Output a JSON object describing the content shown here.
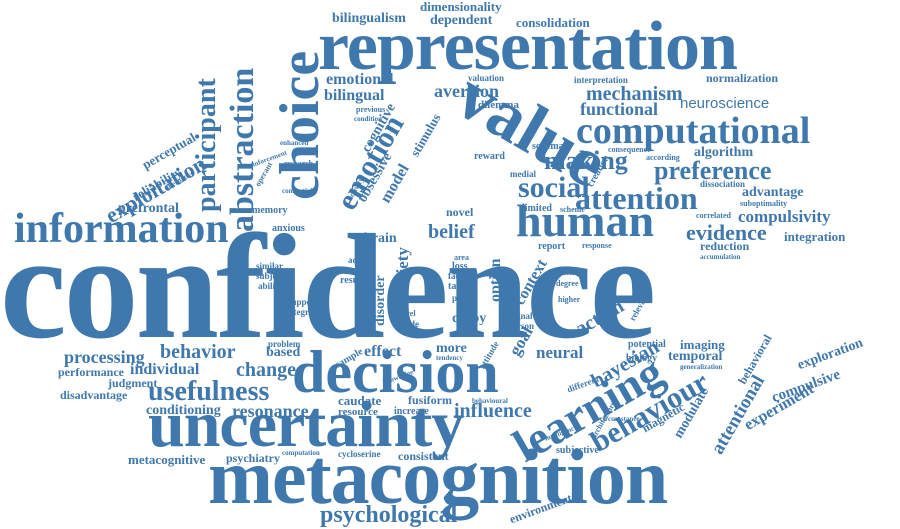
{
  "accent_color": "#3f78ad",
  "words": {
    "confidence": "confidence",
    "metacognition": "metacognition",
    "representation": "representation",
    "uncertainty": "uncertainty",
    "decision": "decision",
    "computational": "computational",
    "value": "value",
    "choice": "choice",
    "information": "information",
    "human": "human",
    "learning": "learning",
    "attention": "attention",
    "social": "social",
    "preference": "preference",
    "making": "making",
    "abstraction": "abstraction",
    "participant": "participant",
    "exploitation": "exploitation",
    "emotion": "emotion",
    "usefulness": "usefulness",
    "behaviour": "behaviour",
    "psychological": "psychological",
    "behavior": "behavior",
    "change": "change",
    "processing": "processing",
    "individual": "individual",
    "resonance": "resonance",
    "influence": "influence",
    "evidence": "evidence",
    "compulsivity": "compulsivity",
    "mechanism": "mechanism",
    "functional": "functional",
    "neuroscience": "neuroscience",
    "aversion": "aversion",
    "bilingual": "bilingual",
    "emotional": "emotional",
    "bilingualism": "bilingualism",
    "dependent": "dependent",
    "consolidation": "consolidation",
    "dimensionality": "dimensionality",
    "normalization": "normalization",
    "algorithm": "algorithm",
    "advantage": "advantage",
    "integration": "integration",
    "reduction": "reduction",
    "belief": "belief",
    "brain": "brain",
    "novel": "novel",
    "prefrontal": "prefrontal",
    "reliability": "reliability",
    "perceptual": "perceptual",
    "cognitive": "cognitive",
    "obsessive": "obsessive",
    "model": "model",
    "stimulus": "stimulus",
    "effect": "effect",
    "more": "more",
    "neural": "neural",
    "bayesian": "bayesian",
    "action": "action",
    "goal": "goal",
    "context": "context",
    "anxiety": "anxiety",
    "disorder": "disorder",
    "option": "option",
    "decoy": "decoy",
    "attentional": "attentional",
    "experiment": "experiment",
    "exploration": "exploration",
    "compulsive": "compulsive",
    "behavioral": "behavioral",
    "modulate": "modulate",
    "magnetic": "magnetic",
    "temporal": "temporal",
    "imaging": "imaging",
    "potential": "potential",
    "biology": "biology",
    "based": "based",
    "performance": "performance",
    "judgment": "judgment",
    "disadvantage": "disadvantage",
    "conditioning": "conditioning",
    "caudate": "caudate",
    "fusiform": "fusiform",
    "resource": "resource",
    "increase": "increase",
    "metacognitive": "metacognitive",
    "psychiatry": "psychiatry",
    "cycloserine": "cycloserine",
    "consistent": "consistent",
    "subjective": "subjective",
    "environment": "environment",
    "memory": "memory",
    "anxious": "anxious",
    "valuation": "valuation",
    "interpretation": "interpretation",
    "dilemma": "dilemma",
    "schema": "schema",
    "reward": "reward",
    "medial": "medial",
    "creation": "creation",
    "consequence": "consequence",
    "according": "according",
    "dissociation": "dissociation",
    "suboptimality": "suboptimality",
    "correlated": "correlated",
    "limited": "limited",
    "scheme": "scheme",
    "report": "report",
    "response": "response",
    "accumulation": "accumulation",
    "taking": "taking",
    "degree": "degree",
    "higher": "higher",
    "signal": "signal",
    "person": "person",
    "relevant": "relevant",
    "different": "different",
    "architecture": "architecture",
    "intelligence": "intelligence",
    "generalization": "generalization",
    "sample": "sample",
    "attitude": "attitude",
    "guide": "guide",
    "level": "level",
    "prior": "prior",
    "task": "task",
    "face": "face",
    "loss": "loss",
    "area": "area",
    "result": "result",
    "study": "study",
    "adult": "adult",
    "similar": "similar",
    "subject": "subject",
    "ability": "ability",
    "integrate": "integrate",
    "support": "support",
    "problem": "problem",
    "research": "research",
    "operant": "operant",
    "reinforcement": "reinforcement",
    "enhanced": "enhanced",
    "alternative": "alternative",
    "previous": "previous",
    "condition": "condition",
    "activity": "activity",
    "computation": "computation",
    "knowledge": "knowledge",
    "tendency": "tendency",
    "behavioural": "behavioural",
    "circumstance": "circumstance",
    "connectivity": "connectivity"
  }
}
